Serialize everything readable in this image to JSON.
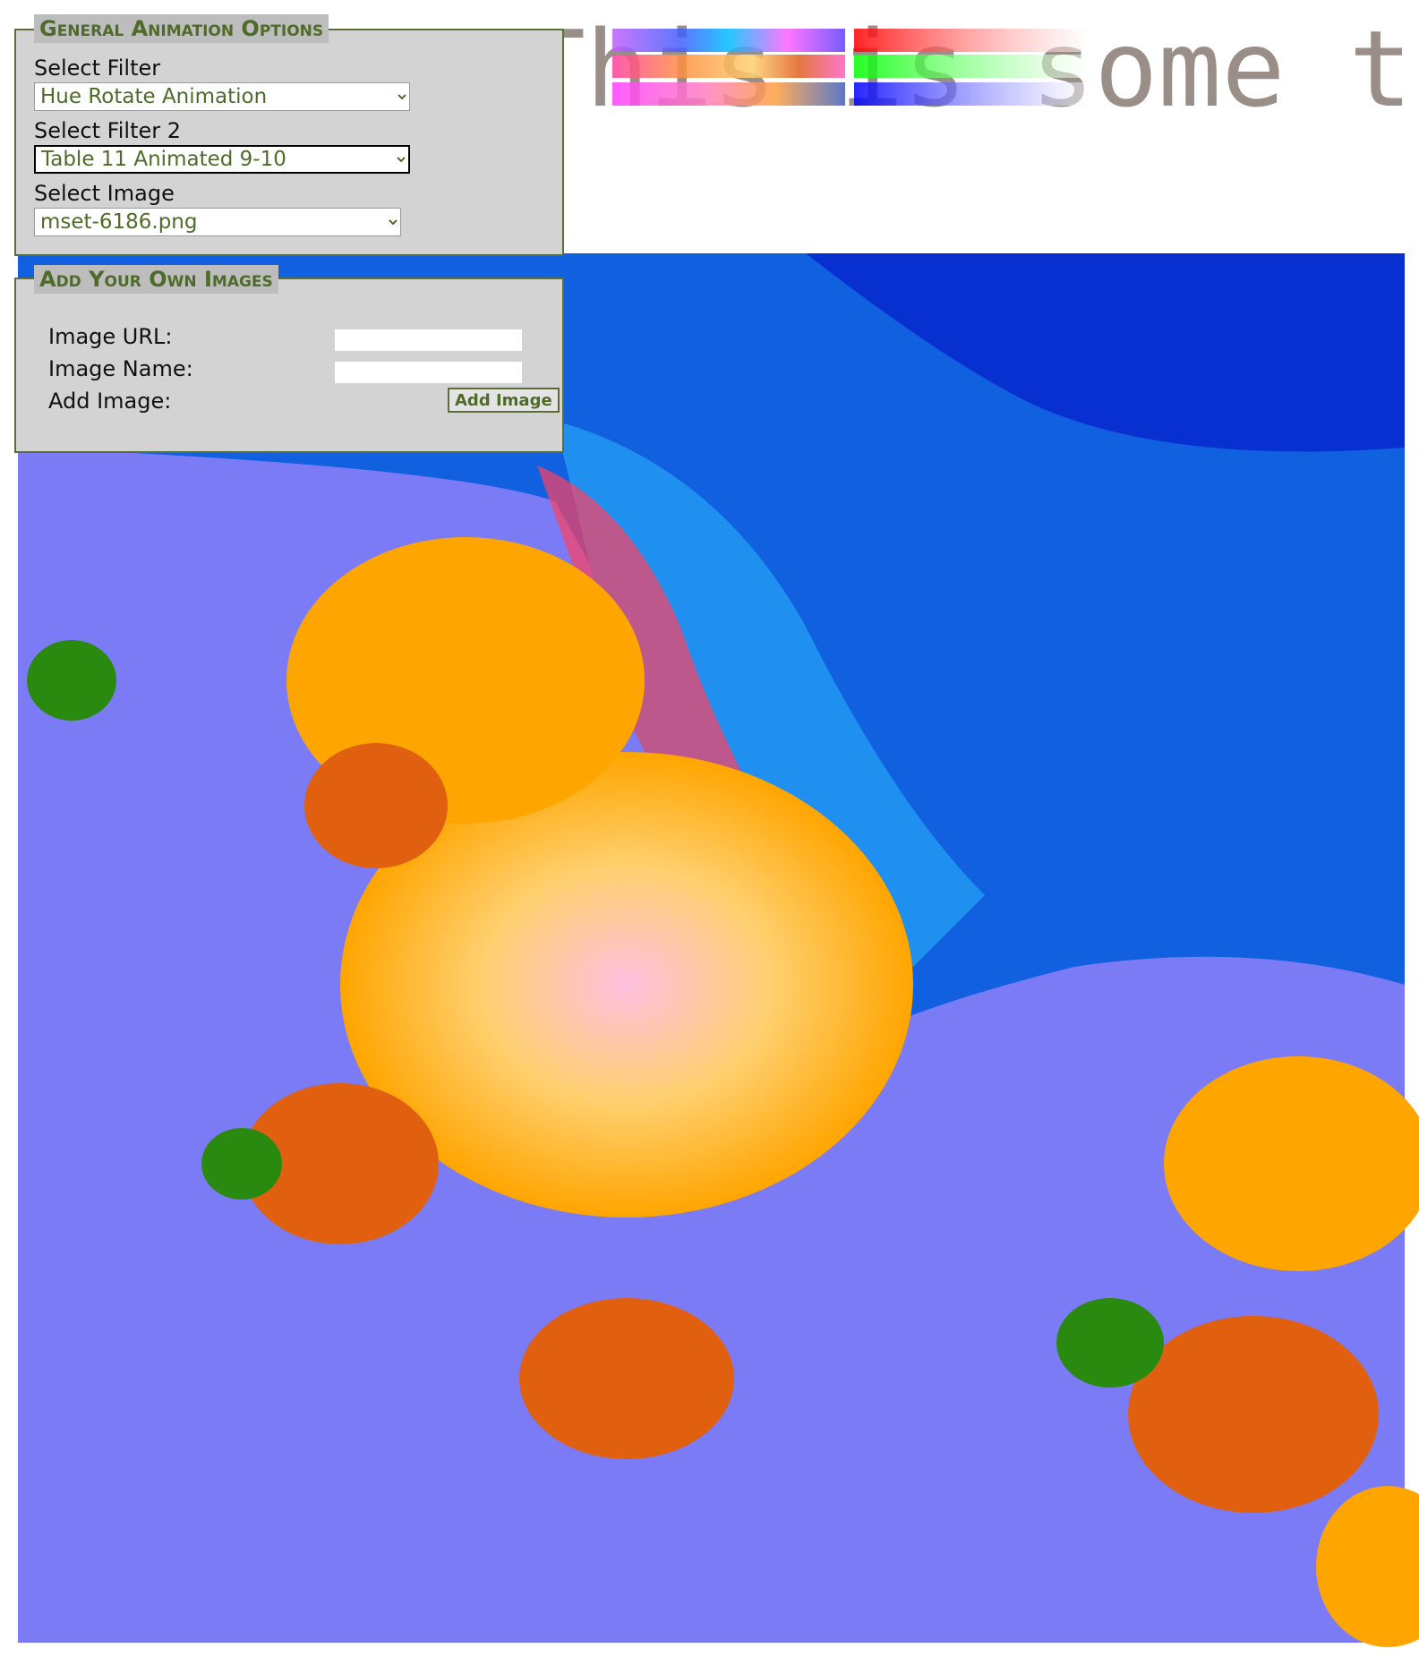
{
  "background_text": "This is some t",
  "panels": [
    {
      "legend": "General Animation Options",
      "fields": [
        {
          "label": "Select Filter",
          "value": "Hue Rotate Animation"
        },
        {
          "label": "Select Filter 2",
          "value": "Table 11 Animated 9-10"
        },
        {
          "label": "Select Image",
          "value": "mset-6186.png"
        }
      ]
    },
    {
      "legend": "Add Your Own Images",
      "fields": [
        {
          "label": "Image URL:"
        },
        {
          "label": "Image Name:"
        },
        {
          "label": "Add Image:"
        }
      ],
      "button": "Add Image"
    }
  ]
}
